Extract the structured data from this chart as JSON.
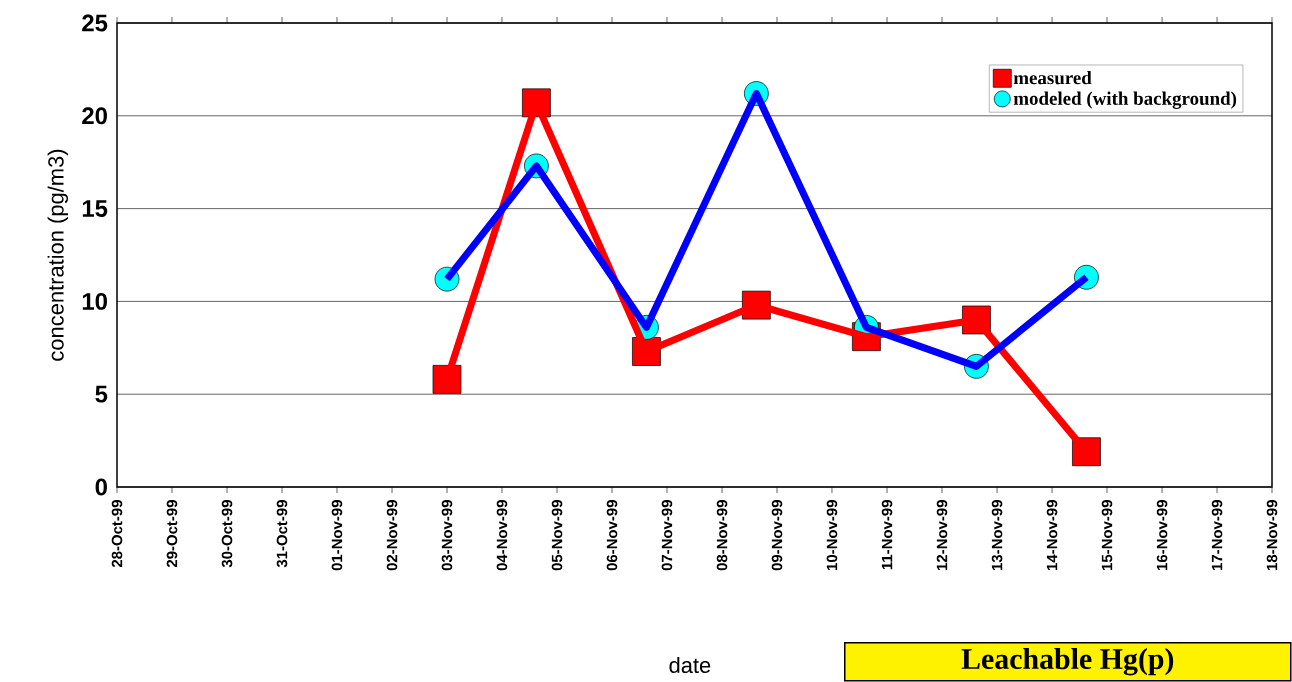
{
  "chart_data": {
    "type": "line",
    "xlabel": "date",
    "ylabel": "concentration (pg/m3)",
    "x": [
      "1999-11-03",
      "1999-11-04T15:00",
      "1999-11-06T15:00",
      "1999-11-08T15:00",
      "1999-11-10T15:00",
      "1999-11-12T15:00",
      "1999-11-14T15:00"
    ],
    "series": [
      {
        "name": "measured",
        "color": "#ff0000",
        "marker": "square",
        "values": [
          5.8,
          20.7,
          7.3,
          9.8,
          8.1,
          9.0,
          1.9
        ]
      },
      {
        "name": "modeled (with background)",
        "color": "#0000ff",
        "colors": [
          "#00ffff",
          "#00ffff",
          "#00ffff",
          "#00ffff",
          "#00ffff",
          "#00ffff",
          "#00ffff"
        ],
        "marker": "circle",
        "values": [
          11.2,
          17.3,
          8.6,
          21.2,
          8.6,
          6.5,
          11.3
        ]
      }
    ],
    "xlim": [
      "1999-10-28",
      "1999-11-18"
    ],
    "xticks": [
      {
        "value": "1999-10-28",
        "label": "28-Oct-99"
      },
      {
        "value": "1999-10-29",
        "label": "29-Oct-99"
      },
      {
        "value": "1999-10-30",
        "label": "30-Oct-99"
      },
      {
        "value": "1999-10-31",
        "label": "31-Oct-99"
      },
      {
        "value": "1999-11-01",
        "label": "01-Nov-99"
      },
      {
        "value": "1999-11-02",
        "label": "02-Nov-99"
      },
      {
        "value": "1999-11-03",
        "label": "03-Nov-99"
      },
      {
        "value": "1999-11-04",
        "label": "04-Nov-99"
      },
      {
        "value": "1999-11-05",
        "label": "05-Nov-99"
      },
      {
        "value": "1999-11-06",
        "label": "06-Nov-99"
      },
      {
        "value": "1999-11-07",
        "label": "07-Nov-99"
      },
      {
        "value": "1999-11-08",
        "label": "08-Nov-99"
      },
      {
        "value": "1999-11-09",
        "label": "09-Nov-99"
      },
      {
        "value": "1999-11-10",
        "label": "10-Nov-99"
      },
      {
        "value": "1999-11-11",
        "label": "11-Nov-99"
      },
      {
        "value": "1999-11-12",
        "label": "12-Nov-99"
      },
      {
        "value": "1999-11-13",
        "label": "13-Nov-99"
      },
      {
        "value": "1999-11-14",
        "label": "14-Nov-99"
      },
      {
        "value": "1999-11-15",
        "label": "15-Nov-99"
      },
      {
        "value": "1999-11-16",
        "label": "16-Nov-99"
      },
      {
        "value": "1999-11-17",
        "label": "17-Nov-99"
      },
      {
        "value": "1999-11-18",
        "label": "18-Nov-99"
      }
    ],
    "ylim": [
      0,
      25
    ],
    "yticks": [
      0,
      5,
      10,
      15,
      20,
      25
    ],
    "grid": "y",
    "legend": "top right",
    "line_style": "solid",
    "annotations": [
      "Leachable Hg(p)"
    ]
  }
}
